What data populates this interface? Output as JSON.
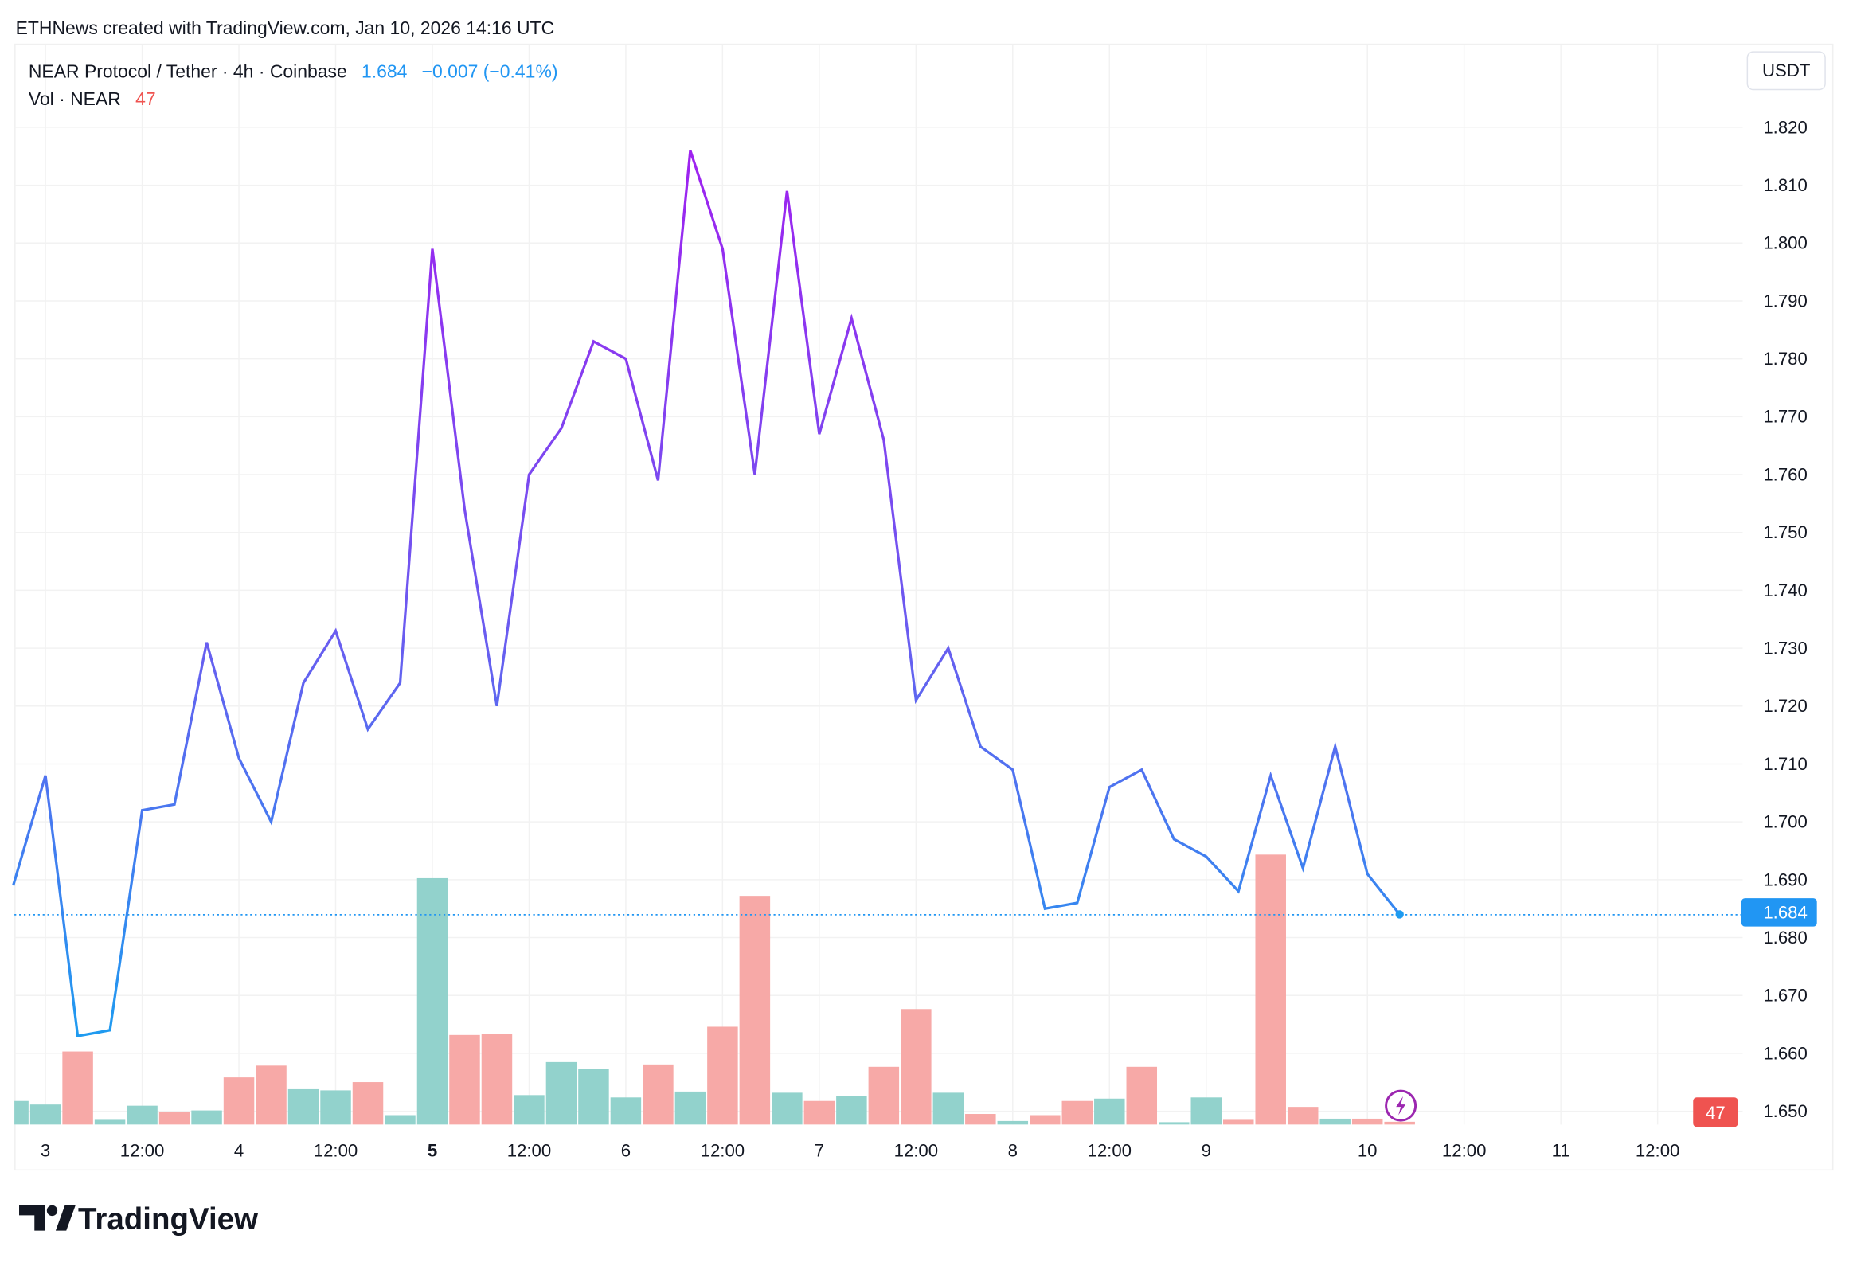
{
  "attribution": "ETHNews created with TradingView.com, Jan 10, 2026 14:16 UTC",
  "legend": {
    "symbol": "NEAR Protocol / Tether · 4h · Coinbase",
    "last": "1.684",
    "change": "−0.007 (−0.41%)",
    "vol_label": "Vol · NEAR",
    "vol_value": "47"
  },
  "currency": "USDT",
  "last_price_badge": "1.684",
  "last_volume_badge": "47",
  "brand": "TradingView",
  "colors": {
    "up": "#26a69a",
    "down": "#ef5350",
    "line_high": "#a020f0",
    "line_low": "#1e9bf0",
    "accent": "#2196f3"
  },
  "chart_data": {
    "type": "line",
    "title": "NEAR Protocol / Tether · 4h · Coinbase",
    "xlabel": "",
    "ylabel": "USDT",
    "ylim": [
      1.648,
      1.824
    ],
    "y_ticks": [
      "1.820",
      "1.810",
      "1.800",
      "1.790",
      "1.780",
      "1.770",
      "1.760",
      "1.750",
      "1.740",
      "1.730",
      "1.720",
      "1.710",
      "1.700",
      "1.690",
      "1.680",
      "1.670",
      "1.660",
      "1.650"
    ],
    "x_ticks": [
      {
        "i": 1,
        "label": "3",
        "bold": false
      },
      {
        "i": 4,
        "label": "12:00",
        "bold": false
      },
      {
        "i": 7,
        "label": "4",
        "bold": false
      },
      {
        "i": 10,
        "label": "12:00",
        "bold": false
      },
      {
        "i": 13,
        "label": "5",
        "bold": true
      },
      {
        "i": 16,
        "label": "12:00",
        "bold": false
      },
      {
        "i": 19,
        "label": "6",
        "bold": false
      },
      {
        "i": 22,
        "label": "12:00",
        "bold": false
      },
      {
        "i": 25,
        "label": "7",
        "bold": false
      },
      {
        "i": 28,
        "label": "12:00",
        "bold": false
      },
      {
        "i": 31,
        "label": "8",
        "bold": false
      },
      {
        "i": 34,
        "label": "12:00",
        "bold": false
      },
      {
        "i": 37,
        "label": "9",
        "bold": false
      },
      {
        "i": 42,
        "label": "10",
        "bold": false
      },
      {
        "i": 45,
        "label": "12:00",
        "bold": false
      },
      {
        "i": 48,
        "label": "11",
        "bold": false
      },
      {
        "i": 51,
        "label": "12:00",
        "bold": false
      }
    ],
    "grid": true,
    "series": [
      {
        "name": "Close",
        "values": [
          1.689,
          1.708,
          1.663,
          1.664,
          1.702,
          1.703,
          1.731,
          1.711,
          1.7,
          1.724,
          1.733,
          1.716,
          1.724,
          1.799,
          1.754,
          1.72,
          1.76,
          1.768,
          1.783,
          1.78,
          1.759,
          1.816,
          1.799,
          1.76,
          1.809,
          1.767,
          1.787,
          1.766,
          1.721,
          1.73,
          1.713,
          1.709,
          1.685,
          1.686,
          1.706,
          1.709,
          1.697,
          1.694,
          1.688,
          1.708,
          1.692,
          1.713,
          1.691,
          1.684
        ]
      },
      {
        "name": "Vol · NEAR",
        "values": [
          400,
          340,
          1240,
          80,
          320,
          220,
          240,
          800,
          1000,
          600,
          580,
          720,
          160,
          4180,
          1520,
          1540,
          500,
          1060,
          940,
          460,
          1020,
          560,
          1660,
          3880,
          540,
          400,
          480,
          980,
          1960,
          540,
          180,
          60,
          160,
          400,
          440,
          980,
          40,
          460,
          80,
          4580,
          300,
          100,
          100,
          47
        ],
        "direction": [
          "u",
          "u",
          "d",
          "u",
          "u",
          "d",
          "u",
          "d",
          "d",
          "u",
          "u",
          "d",
          "u",
          "u",
          "d",
          "d",
          "u",
          "u",
          "u",
          "u",
          "d",
          "u",
          "d",
          "d",
          "u",
          "d",
          "u",
          "d",
          "d",
          "u",
          "d",
          "u",
          "d",
          "d",
          "u",
          "d",
          "u",
          "u",
          "d",
          "d",
          "d",
          "u",
          "d",
          "d"
        ]
      }
    ]
  }
}
